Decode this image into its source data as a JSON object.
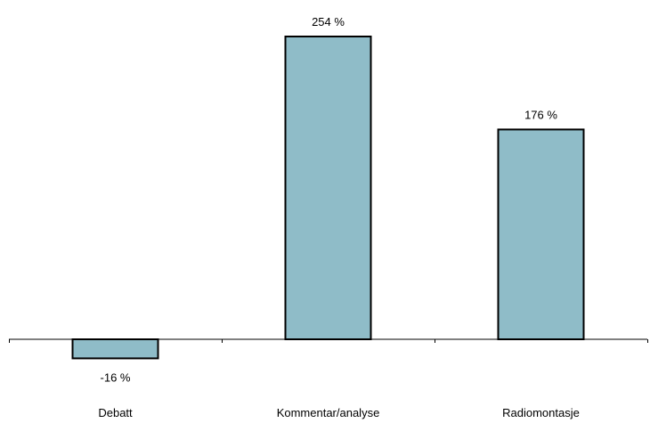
{
  "chart_data": {
    "type": "bar",
    "categories": [
      "Debatt",
      "Kommentar/analyse",
      "Radiomontasje"
    ],
    "values": [
      -16,
      254,
      176
    ],
    "data_labels": [
      "-16 %",
      "254 %",
      "176 %"
    ],
    "title": "",
    "xlabel": "",
    "ylabel": "",
    "ylim": [
      -30,
      270
    ],
    "grid": false,
    "legend": "none",
    "colors": {
      "bar_fill": "#8fbcc8",
      "bar_stroke": "#000000",
      "axis": "#000000",
      "text": "#000000"
    }
  }
}
